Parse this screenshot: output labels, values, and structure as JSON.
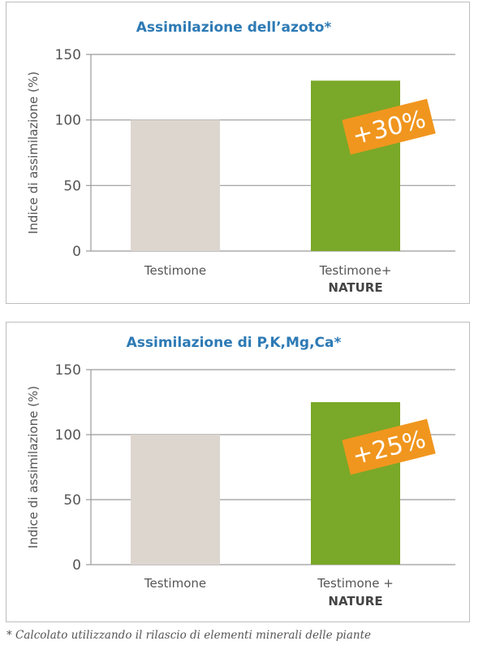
{
  "colors": {
    "title": "#2d7ab5",
    "control_bar": "#ddd6cf",
    "nature_bar": "#7aa828",
    "badge": "#f0961e",
    "axis_text": "#555555",
    "grid": "#9a9a9a"
  },
  "chart_data": [
    {
      "type": "bar",
      "title": "Assimilazione dell’azoto*",
      "ylabel": "Indice di assimilazione (%)",
      "xlabel": "",
      "ylim": [
        0,
        150
      ],
      "yticks": [
        0,
        50,
        100,
        150
      ],
      "grid": true,
      "categories": [
        {
          "line1": "Testimone",
          "line2": ""
        },
        {
          "line1": "Testimone+",
          "line2": "NATURE"
        }
      ],
      "values": [
        100,
        130
      ],
      "badge": "+30%"
    },
    {
      "type": "bar",
      "title": "Assimilazione di P,K,Mg,Ca*",
      "ylabel": "Indice di assimilazione (%)",
      "xlabel": "",
      "ylim": [
        0,
        150
      ],
      "yticks": [
        0,
        50,
        100,
        150
      ],
      "grid": true,
      "categories": [
        {
          "line1": "Testimone",
          "line2": ""
        },
        {
          "line1": "Testimone +",
          "line2": "NATURE"
        }
      ],
      "values": [
        100,
        125
      ],
      "badge": "+25%"
    }
  ],
  "footnote": "* Calcolato utilizzando il rilascio di elementi minerali delle piante"
}
